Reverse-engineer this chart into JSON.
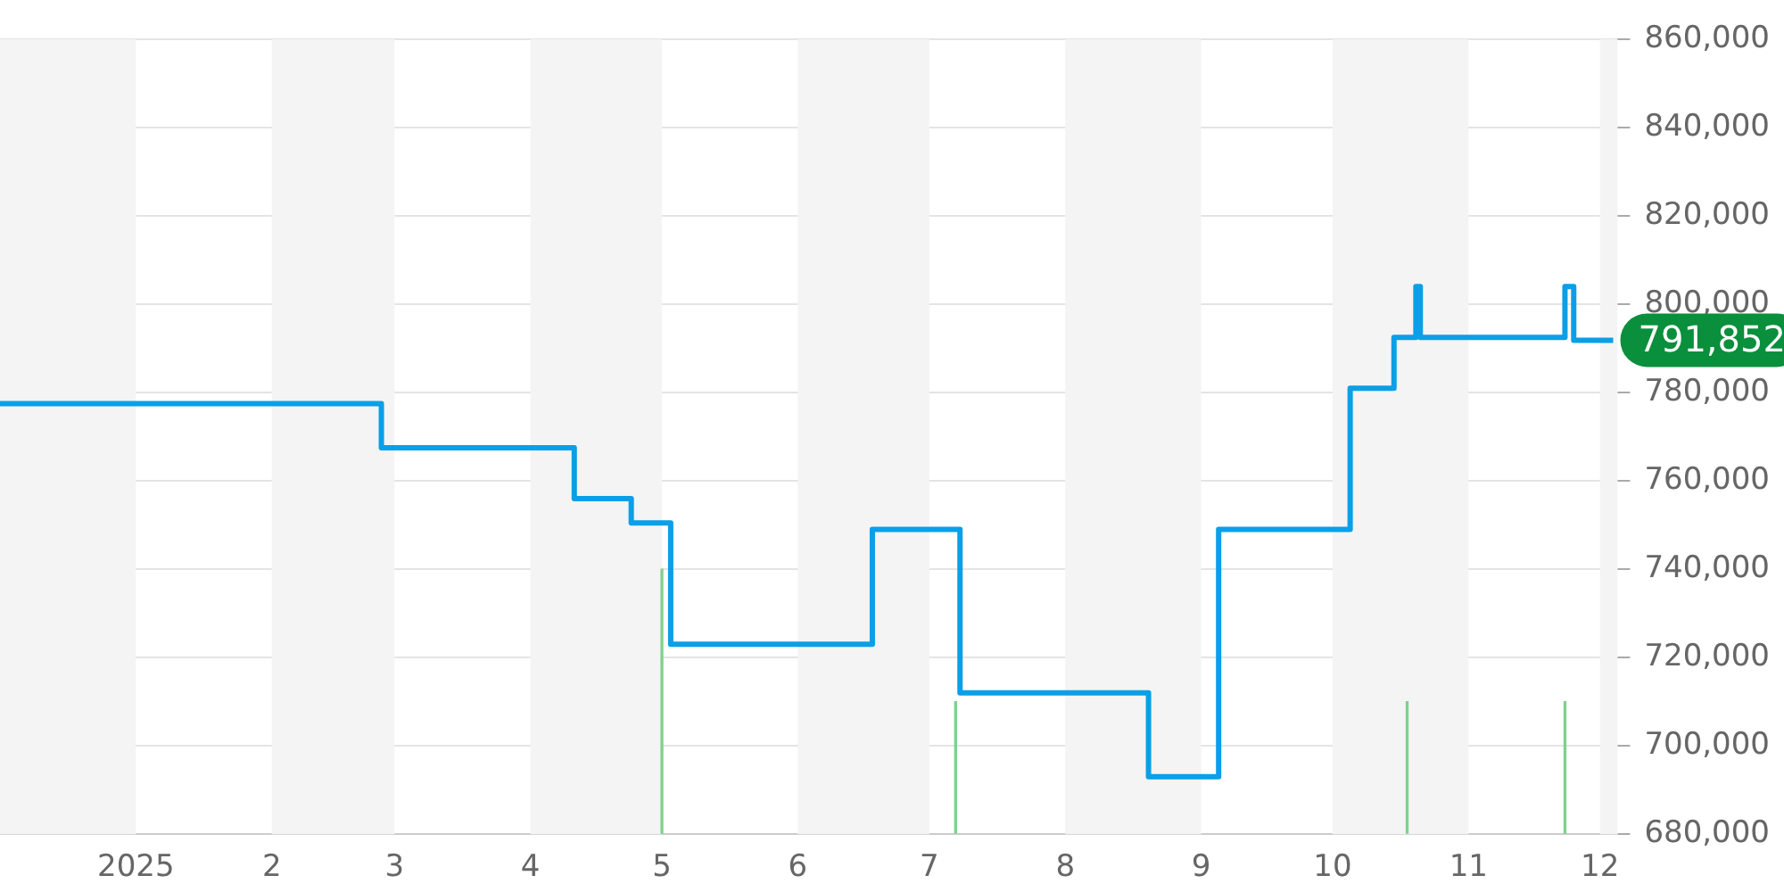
{
  "chart_data": {
    "type": "step",
    "x": [
      "2024-12-01",
      "2025-02-26",
      "2025-04-11",
      "2025-04-24",
      "2025-05-03",
      "2025-06-18",
      "2025-07-08",
      "2025-08-20",
      "2025-09-05",
      "2025-10-05",
      "2025-10-15",
      "2025-10-20",
      "2025-10-21",
      "2025-11-23",
      "2025-11-25",
      "2025-12-04"
    ],
    "series": [
      {
        "color": "#0a9fe8",
        "values": [
          777500,
          767500,
          756000,
          750500,
          723000,
          749000,
          712000,
          693000,
          749000,
          781000,
          792500,
          804000,
          792500,
          804000,
          791852,
          791852
        ]
      },
      {
        "type": "bar",
        "color": "#7fd18b",
        "x": [
          "2025-05-01",
          "2025-07-07",
          "2025-10-18",
          "2025-11-23"
        ],
        "values": [
          740000,
          710000,
          710000,
          710000
        ]
      }
    ],
    "xlim": [
      "2024-12-01",
      "2025-12-05"
    ],
    "xticks": [
      {
        "value": "2025-01-01",
        "label": "2025"
      },
      {
        "value": "2025-02-01",
        "label": "2"
      },
      {
        "value": "2025-03-01",
        "label": "3"
      },
      {
        "value": "2025-04-01",
        "label": "4"
      },
      {
        "value": "2025-05-01",
        "label": "5"
      },
      {
        "value": "2025-06-01",
        "label": "6"
      },
      {
        "value": "2025-07-01",
        "label": "7"
      },
      {
        "value": "2025-08-01",
        "label": "8"
      },
      {
        "value": "2025-09-01",
        "label": "9"
      },
      {
        "value": "2025-10-01",
        "label": "10"
      },
      {
        "value": "2025-11-01",
        "label": "11"
      },
      {
        "value": "2025-12-01",
        "label": "12"
      }
    ],
    "ylim": [
      680000,
      860000
    ],
    "yticks": [
      {
        "value": 680000,
        "label": "680,000"
      },
      {
        "value": 700000,
        "label": "700,000"
      },
      {
        "value": 720000,
        "label": "720,000"
      },
      {
        "value": 740000,
        "label": "740,000"
      },
      {
        "value": 760000,
        "label": "760,000"
      },
      {
        "value": 780000,
        "label": "780,000"
      },
      {
        "value": 800000,
        "label": "800,000"
      },
      {
        "value": 820000,
        "label": "820,000"
      },
      {
        "value": 840000,
        "label": "840,000"
      },
      {
        "value": 860000,
        "label": "860,000"
      }
    ],
    "bands": [
      {
        "axis": "x",
        "from": "2024-12-01",
        "to": "2025-01-01",
        "color": "#f4f4f4"
      },
      {
        "axis": "x",
        "from": "2025-02-01",
        "to": "2025-03-01",
        "color": "#f4f4f4"
      },
      {
        "axis": "x",
        "from": "2025-04-01",
        "to": "2025-05-01",
        "color": "#f4f4f4"
      },
      {
        "axis": "x",
        "from": "2025-06-01",
        "to": "2025-07-01",
        "color": "#f4f4f4"
      },
      {
        "axis": "x",
        "from": "2025-08-01",
        "to": "2025-09-01",
        "color": "#f4f4f4"
      },
      {
        "axis": "x",
        "from": "2025-10-01",
        "to": "2025-11-01",
        "color": "#f4f4f4"
      },
      {
        "axis": "x",
        "from": "2025-12-01",
        "to": "2025-12-05",
        "color": "#f4f4f4"
      }
    ],
    "annotations": [
      {
        "text": "791,852",
        "x": "2025-12-04",
        "y": 791852
      }
    ],
    "grid": "y",
    "legend": false,
    "marker": "none",
    "line_style": "solid"
  }
}
